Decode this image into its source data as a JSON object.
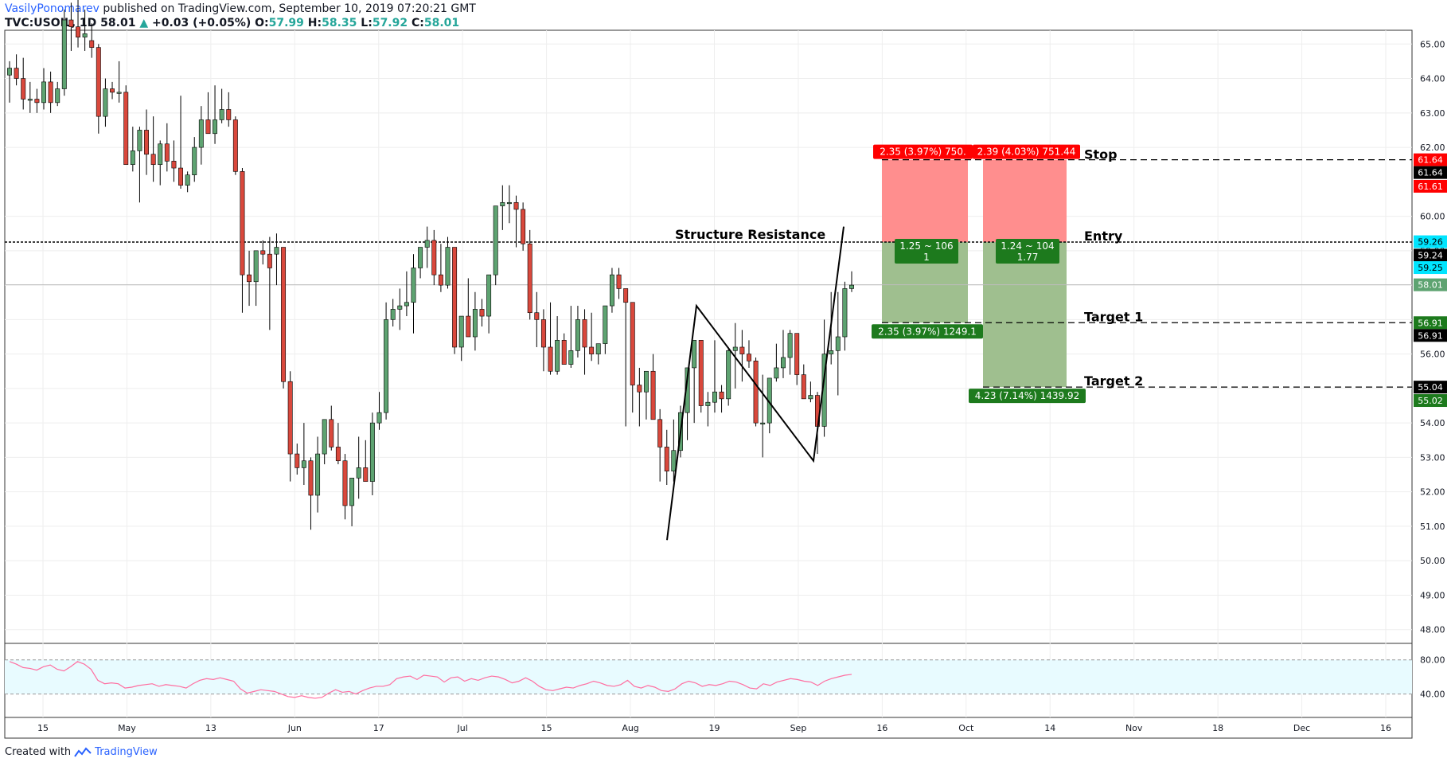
{
  "header": {
    "author": "VasilyPonomarev",
    "published": "published on TradingView.com, September 10, 2019 07:20:21 GMT",
    "symbol": "TVC:USOIL, 1D",
    "last": "58.01",
    "change": "+0.03 (+0.05%)",
    "o_label": "O:",
    "o_val": "57.99",
    "h_label": "H:",
    "h_val": "58.35",
    "l_label": "L:",
    "l_val": "57.92",
    "c_label": "C:",
    "c_val": "58.01"
  },
  "footer": {
    "created": "Created with",
    "brand": "TradingView"
  },
  "colors": {
    "up": "#5ea371",
    "down": "#d9483c",
    "grid": "#eeeeee",
    "text": "#131722",
    "stop_red": "#ff0000",
    "tp_green": "#1d7a1d",
    "rsi_fill": "#e8fbff",
    "rsi_line": "#ff6ea0",
    "entry_cyan": "#00e5ff"
  },
  "chart_data": [
    {
      "type": "candlestick",
      "y_range": [
        47.6,
        65.4
      ],
      "y_ticks": [
        "65.00",
        "64.00",
        "63.00",
        "62.00",
        "60.00",
        "59.00",
        "58.00",
        "57.00",
        "56.00",
        "55.00",
        "54.00",
        "53.00",
        "52.00",
        "51.00",
        "50.00",
        "49.00",
        "48.00"
      ],
      "x_labels": [
        "15",
        "May",
        "13",
        "Jun",
        "17",
        "Jul",
        "15",
        "Aug",
        "19",
        "Sep",
        "16",
        "Oct",
        "14",
        "Nov",
        "18",
        "Dec",
        "16"
      ],
      "price_labels": [
        {
          "text": "61.64",
          "bg": "#ff0000"
        },
        {
          "text": "61.64",
          "bg": "#000000"
        },
        {
          "text": "61.61",
          "bg": "#ff0000"
        },
        {
          "text": "59.26",
          "bg": "#00e5ff"
        },
        {
          "text": "59.24",
          "bg": "#000000"
        },
        {
          "text": "59.25",
          "bg": "#00e5ff"
        },
        {
          "text": "58.01",
          "bg": "#5ea371"
        },
        {
          "text": "56.91",
          "bg": "#1d7a1d"
        },
        {
          "text": "56.91",
          "bg": "#000000"
        },
        {
          "text": "55.04",
          "bg": "#000000"
        },
        {
          "text": "55.02",
          "bg": "#1d7a1d"
        }
      ],
      "price_label_values": [
        61.64,
        61.64,
        61.61,
        59.26,
        59.24,
        59.25,
        58.01,
        56.91,
        56.91,
        55.04,
        55.02
      ],
      "levels": {
        "stop": 61.64,
        "entry": 59.25,
        "target1": 56.91,
        "target2": 55.04,
        "current": 58.01
      },
      "annotations": {
        "structure_resistance": "Structure Resistance",
        "stop": "Stop",
        "entry": "Entry",
        "target1": "Target 1",
        "target2": "Target 2"
      },
      "positions": [
        {
          "risk": "2.35 (3.97%) 750.",
          "ratio1": "1.25 ~ 106",
          "ratio2": "1",
          "reward": "2.35 (3.97%) 1249.1"
        },
        {
          "risk": "2.39 (4.03%) 751.44",
          "ratio1": "1.24 ~ 104",
          "ratio2": "1.77",
          "reward": "4.23 (7.14%) 1439.92"
        }
      ],
      "candles_ohlc": [
        [
          64.1,
          64.5,
          63.3,
          64.3
        ],
        [
          64.3,
          64.7,
          63.8,
          64.0
        ],
        [
          64.0,
          64.6,
          63.1,
          63.4
        ],
        [
          63.4,
          63.9,
          63.0,
          63.4
        ],
        [
          63.4,
          63.7,
          63.0,
          63.3
        ],
        [
          63.3,
          64.3,
          63.1,
          63.9
        ],
        [
          63.9,
          64.2,
          63.0,
          63.3
        ],
        [
          63.3,
          63.9,
          63.2,
          63.7
        ],
        [
          63.7,
          66.0,
          63.5,
          65.7
        ],
        [
          65.7,
          66.2,
          64.8,
          65.5
        ],
        [
          65.5,
          66.5,
          64.9,
          65.2
        ],
        [
          65.2,
          66.0,
          64.8,
          65.3
        ],
        [
          65.1,
          65.6,
          64.6,
          64.9
        ],
        [
          64.9,
          65.0,
          62.4,
          62.9
        ],
        [
          62.9,
          64.0,
          62.6,
          63.7
        ],
        [
          63.7,
          63.9,
          63.4,
          63.6
        ],
        [
          63.6,
          64.5,
          63.3,
          63.6
        ],
        [
          63.6,
          63.8,
          61.9,
          61.5
        ],
        [
          61.5,
          62.6,
          61.3,
          61.9
        ],
        [
          61.9,
          62.6,
          60.4,
          62.5
        ],
        [
          62.5,
          63.1,
          61.2,
          61.8
        ],
        [
          61.8,
          62.9,
          61.0,
          61.5
        ],
        [
          61.5,
          62.2,
          60.9,
          62.1
        ],
        [
          62.1,
          62.7,
          61.3,
          61.6
        ],
        [
          61.6,
          62.2,
          61.0,
          61.4
        ],
        [
          61.4,
          63.5,
          60.8,
          60.9
        ],
        [
          60.9,
          61.3,
          60.7,
          61.2
        ],
        [
          61.2,
          62.3,
          61.0,
          62.0
        ],
        [
          62.0,
          63.2,
          61.5,
          62.8
        ],
        [
          62.8,
          63.6,
          62.6,
          62.4
        ],
        [
          62.4,
          63.8,
          62.1,
          62.8
        ],
        [
          62.8,
          63.7,
          62.7,
          63.1
        ],
        [
          63.1,
          63.6,
          62.6,
          62.8
        ],
        [
          62.8,
          62.9,
          61.2,
          61.3
        ],
        [
          61.3,
          61.4,
          57.2,
          58.3
        ],
        [
          58.3,
          59.0,
          57.4,
          58.1
        ],
        [
          58.1,
          58.8,
          57.4,
          59.0
        ],
        [
          59.0,
          59.3,
          58.6,
          58.9
        ],
        [
          58.9,
          59.4,
          56.7,
          58.5
        ],
        [
          58.9,
          59.5,
          58.0,
          59.1
        ],
        [
          59.1,
          59.1,
          55.0,
          55.2
        ],
        [
          55.2,
          55.5,
          52.3,
          53.1
        ],
        [
          53.1,
          53.4,
          52.5,
          52.7
        ],
        [
          52.7,
          54.0,
          52.2,
          52.9
        ],
        [
          52.9,
          53.0,
          50.9,
          51.9
        ],
        [
          51.9,
          53.6,
          51.4,
          53.1
        ],
        [
          53.1,
          54.0,
          52.8,
          54.1
        ],
        [
          54.1,
          54.5,
          53.2,
          53.3
        ],
        [
          53.3,
          54.0,
          52.8,
          52.9
        ],
        [
          52.9,
          53.1,
          51.2,
          51.6
        ],
        [
          51.6,
          52.4,
          51.0,
          52.4
        ],
        [
          52.4,
          53.6,
          51.8,
          52.7
        ],
        [
          52.7,
          53.5,
          52.3,
          52.3
        ],
        [
          52.3,
          54.3,
          51.9,
          54.0
        ],
        [
          54.0,
          54.9,
          53.8,
          54.3
        ],
        [
          54.3,
          57.5,
          54.1,
          57.0
        ],
        [
          57.0,
          57.6,
          56.8,
          57.3
        ],
        [
          57.3,
          57.9,
          56.7,
          57.4
        ],
        [
          57.4,
          58.4,
          57.1,
          57.5
        ],
        [
          57.5,
          58.9,
          56.6,
          58.5
        ],
        [
          58.5,
          59.1,
          58.2,
          59.1
        ],
        [
          59.1,
          59.7,
          58.5,
          59.3
        ],
        [
          59.3,
          59.6,
          58.0,
          58.3
        ],
        [
          58.3,
          59.2,
          57.8,
          58.0
        ],
        [
          58.0,
          59.4,
          57.9,
          59.1
        ],
        [
          59.1,
          59.1,
          56.0,
          56.2
        ],
        [
          56.2,
          57.1,
          55.8,
          57.1
        ],
        [
          57.1,
          58.2,
          56.7,
          56.5
        ],
        [
          56.5,
          57.8,
          56.1,
          57.3
        ],
        [
          57.3,
          57.6,
          56.8,
          57.1
        ],
        [
          57.1,
          58.1,
          56.6,
          58.3
        ],
        [
          58.3,
          59.9,
          58.0,
          60.3
        ],
        [
          60.3,
          60.9,
          59.6,
          60.4
        ],
        [
          60.4,
          60.9,
          59.8,
          60.4
        ],
        [
          60.4,
          60.6,
          59.1,
          60.2
        ],
        [
          60.2,
          60.4,
          59.0,
          59.2
        ],
        [
          59.2,
          59.6,
          57.0,
          57.2
        ],
        [
          57.2,
          57.8,
          56.2,
          57.0
        ],
        [
          57.0,
          57.3,
          55.5,
          56.2
        ],
        [
          56.2,
          57.5,
          55.4,
          55.5
        ],
        [
          55.5,
          57.1,
          55.4,
          56.4
        ],
        [
          56.4,
          56.6,
          55.8,
          55.7
        ],
        [
          55.7,
          57.4,
          55.6,
          56.1
        ],
        [
          56.1,
          57.4,
          55.9,
          57.0
        ],
        [
          57.0,
          57.3,
          55.4,
          56.2
        ],
        [
          56.2,
          57.2,
          55.8,
          56.0
        ],
        [
          56.0,
          56.2,
          55.7,
          56.3
        ],
        [
          56.3,
          57.3,
          56.0,
          57.4
        ],
        [
          57.4,
          58.5,
          57.2,
          58.3
        ],
        [
          58.3,
          58.5,
          57.6,
          57.9
        ],
        [
          57.9,
          57.9,
          53.9,
          57.5
        ],
        [
          57.5,
          57.0,
          54.3,
          55.1
        ],
        [
          55.1,
          55.6,
          53.9,
          54.9
        ],
        [
          54.9,
          55.3,
          54.1,
          55.5
        ],
        [
          55.5,
          56.0,
          54.7,
          54.1
        ],
        [
          54.1,
          54.4,
          52.3,
          53.3
        ],
        [
          53.3,
          53.8,
          52.2,
          52.6
        ],
        [
          52.6,
          54.1,
          52.3,
          53.2
        ],
        [
          53.2,
          54.5,
          53.0,
          54.3
        ],
        [
          54.3,
          55.0,
          53.5,
          55.6
        ],
        [
          55.6,
          56.4,
          54.0,
          56.4
        ],
        [
          56.4,
          56.4,
          54.3,
          54.5
        ],
        [
          54.5,
          54.9,
          53.9,
          54.6
        ],
        [
          54.6,
          56.4,
          54.3,
          54.9
        ],
        [
          54.9,
          55.1,
          54.3,
          54.7
        ],
        [
          54.7,
          56.2,
          54.5,
          56.1
        ],
        [
          56.1,
          56.9,
          55.0,
          56.2
        ],
        [
          56.2,
          56.7,
          55.2,
          56.0
        ],
        [
          56.0,
          56.4,
          55.6,
          55.8
        ],
        [
          55.8,
          55.9,
          53.9,
          54.0
        ],
        [
          54.0,
          55.4,
          53.0,
          54.0
        ],
        [
          54.0,
          55.3,
          53.7,
          55.3
        ],
        [
          55.3,
          56.3,
          55.2,
          55.6
        ],
        [
          55.6,
          56.7,
          55.3,
          55.9
        ],
        [
          55.9,
          56.7,
          55.4,
          56.6
        ],
        [
          56.6,
          56.6,
          55.1,
          55.4
        ],
        [
          55.4,
          55.7,
          54.7,
          54.7
        ],
        [
          54.7,
          55.2,
          54.6,
          54.8
        ],
        [
          54.8,
          54.9,
          53.1,
          53.9
        ],
        [
          53.9,
          57.0,
          53.6,
          56.0
        ],
        [
          56.0,
          57.8,
          55.7,
          56.1
        ],
        [
          56.1,
          57.8,
          54.8,
          56.5
        ],
        [
          56.5,
          58.1,
          56.1,
          57.9
        ],
        [
          57.9,
          58.4,
          57.8,
          58.0
        ]
      ],
      "pattern_line": [
        [
          50.6,
          0
        ],
        [
          57.4,
          1
        ],
        [
          52.9,
          2
        ],
        [
          59.7,
          3
        ]
      ],
      "rsi": {
        "levels": [
          "80.00",
          "40.00"
        ],
        "values": [
          78,
          75,
          71,
          70,
          68,
          72,
          74,
          69,
          67,
          72,
          78,
          75,
          69,
          56,
          52,
          53,
          52,
          47,
          48,
          50,
          51,
          52,
          49,
          51,
          50,
          49,
          47,
          52,
          56,
          58,
          57,
          59,
          57,
          55,
          46,
          41,
          43,
          45,
          44,
          43,
          40,
          37,
          36,
          38,
          36,
          35,
          36,
          41,
          45,
          42,
          43,
          40,
          44,
          47,
          49,
          49,
          51,
          58,
          60,
          61,
          57,
          62,
          61,
          60,
          54,
          59,
          60,
          55,
          58,
          56,
          59,
          61,
          60,
          57,
          53,
          55,
          59,
          55,
          49,
          45,
          44,
          46,
          48,
          47,
          50,
          52,
          55,
          53,
          50,
          49,
          51,
          56,
          49,
          47,
          50,
          48,
          44,
          43,
          46,
          52,
          55,
          53,
          49,
          51,
          50,
          52,
          55,
          54,
          51,
          47,
          46,
          52,
          50,
          54,
          56,
          58,
          57,
          55,
          54,
          50,
          55,
          58,
          60,
          62,
          63
        ]
      }
    }
  ]
}
